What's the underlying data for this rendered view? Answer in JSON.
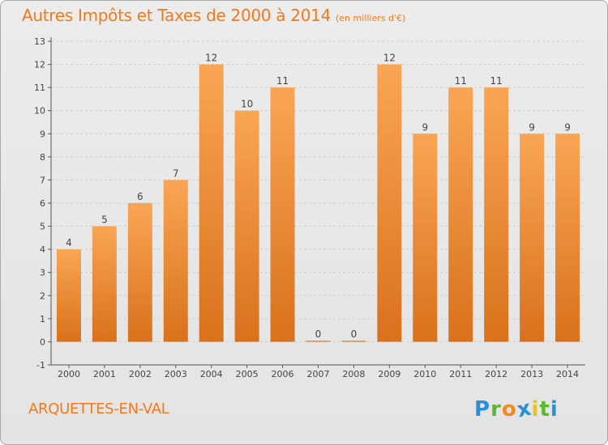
{
  "title": "Autres Impôts et Taxes de 2000 à 2014",
  "unit": "(en milliers d'€)",
  "commune": "ARQUETTES-EN-VAL",
  "logo": {
    "letters": [
      "P",
      "r",
      "o",
      "x",
      "i",
      "t",
      "i"
    ],
    "colors": [
      "#2b8fd6",
      "#5cb82e",
      "#f08a1a",
      "#2b8fd6",
      "#e8c51b",
      "#5cb82e",
      "#2b8fd6"
    ]
  },
  "colors": {
    "bar_light": "#f9a654",
    "bar_dark": "#d9711c",
    "text": "#f07a1c",
    "grid": "#cccccc"
  },
  "chart_data": {
    "type": "bar",
    "categories": [
      "2000",
      "2001",
      "2002",
      "2003",
      "2004",
      "2005",
      "2006",
      "2007",
      "2008",
      "2009",
      "2010",
      "2011",
      "2012",
      "2013",
      "2014"
    ],
    "values": [
      4,
      5,
      6,
      7,
      12,
      10,
      11,
      0,
      0,
      12,
      9,
      11,
      11,
      9,
      9
    ],
    "data_labels": [
      "4",
      "5",
      "6",
      "7",
      "12",
      "10",
      "11",
      "0",
      "0",
      "12",
      "9",
      "11",
      "11",
      "9",
      "9"
    ],
    "title": "Autres Impôts et Taxes de 2000 à 2014",
    "xlabel": "",
    "ylabel": "",
    "ylim": [
      -1,
      13
    ],
    "yticks": [
      -1,
      0,
      1,
      2,
      3,
      4,
      5,
      6,
      7,
      8,
      9,
      10,
      11,
      12,
      13
    ],
    "grid": "horizontal-dashed"
  }
}
